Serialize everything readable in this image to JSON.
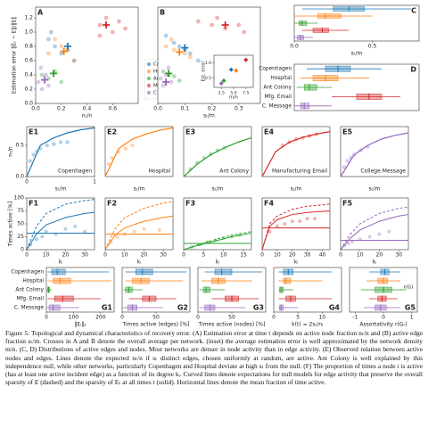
{
  "chart_data": [
    {
      "type": "scatter",
      "label": "A",
      "ylabel": "Estimation error ‖Êₜ − E‖/‖E‖",
      "xlabel": "nₜ/n",
      "xlim": [
        0,
        0.8
      ],
      "ylim": [
        0,
        1.35
      ],
      "xticks": [
        {
          "value": 0,
          "label": "0.0"
        },
        0.2,
        0.4,
        0.6
      ],
      "yticks": [
        {
          "value": 0,
          "label": "0.0"
        },
        0.2,
        0.4,
        0.6,
        0.8,
        {
          "value": 1,
          "label": "1.0"
        },
        1.2
      ],
      "legend": true,
      "series": [
        {
          "name": "Copenhagen",
          "color": "#1f77b4",
          "x": [
            0.1,
            0.15,
            0.2,
            0.25,
            0.3,
            0.12
          ],
          "y": [
            0.9,
            0.8,
            0.7,
            0.75,
            0.6,
            1.0
          ],
          "mean_x": 0.25,
          "mean_y": 0.8
        },
        {
          "name": "Hospital",
          "color": "#ff7f0e",
          "x": [
            0.1,
            0.2,
            0.3,
            0.25,
            0.15
          ],
          "y": [
            0.7,
            0.8,
            0.6,
            0.75,
            0.9
          ],
          "mean_x": 0.22,
          "mean_y": 0.73
        },
        {
          "name": "Ant Colony",
          "color": "#2ca02c",
          "x": [
            0.05,
            0.1,
            0.15,
            0.2
          ],
          "y": [
            0.4,
            0.35,
            0.45,
            0.3
          ],
          "mean_x": 0.14,
          "mean_y": 0.42
        },
        {
          "name": "Mfg. Email",
          "color": "#d62728",
          "x": [
            0.5,
            0.55,
            0.6,
            0.65,
            0.5,
            0.7
          ],
          "y": [
            1.1,
            1.2,
            1.0,
            1.15,
            0.95,
            1.05
          ],
          "mean_x": 0.55,
          "mean_y": 1.1
        },
        {
          "name": "C. Message",
          "color": "#9467bd",
          "x": [
            0.02,
            0.05,
            0.08,
            0.1,
            0.04
          ],
          "y": [
            0.3,
            0.2,
            0.4,
            0.25,
            0.5
          ],
          "mean_x": 0.07,
          "mean_y": 0.33
        }
      ]
    },
    {
      "type": "scatter",
      "label": "B",
      "xlabel": "sₜ/m",
      "xlim": [
        0,
        0.38
      ],
      "ylim": [
        0,
        1.35
      ],
      "xticks": [
        {
          "value": 0,
          "label": "0.0"
        },
        0.1,
        0.2,
        0.3
      ],
      "series": [
        {
          "color": "#1f77b4",
          "x": [
            0.03,
            0.06,
            0.1,
            0.12,
            0.15,
            0.08
          ],
          "y": [
            0.95,
            0.85,
            0.75,
            0.7,
            0.6,
            0.8
          ],
          "mean_x": 0.1,
          "mean_y": 0.78
        },
        {
          "color": "#ff7f0e",
          "x": [
            0.03,
            0.06,
            0.1,
            0.12,
            0.05
          ],
          "y": [
            0.8,
            0.75,
            0.7,
            0.65,
            0.9
          ],
          "mean_x": 0.08,
          "mean_y": 0.72
        },
        {
          "color": "#2ca02c",
          "x": [
            0.02,
            0.04,
            0.06,
            0.08
          ],
          "y": [
            0.45,
            0.4,
            0.38,
            0.32
          ],
          "mean_x": 0.04,
          "mean_y": 0.42
        },
        {
          "color": "#d62728",
          "x": [
            0.15,
            0.2,
            0.25,
            0.3,
            0.32,
            0.22
          ],
          "y": [
            1.15,
            1.1,
            1.05,
            1.1,
            1.0,
            1.2
          ],
          "mean_x": 0.25,
          "mean_y": 1.1
        },
        {
          "color": "#9467bd",
          "x": [
            0.01,
            0.02,
            0.03,
            0.05,
            0.04
          ],
          "y": [
            0.35,
            0.25,
            0.4,
            0.3,
            0.5
          ],
          "mean_x": 0.03,
          "mean_y": 0.3
        }
      ]
    },
    {
      "type": "inset",
      "ylabel": "Est. error",
      "xlabel": "m/n",
      "xlim": [
        1,
        9
      ],
      "ylim": [
        0.2,
        1.25
      ],
      "xticks": [
        2.5,
        {
          "value": 5,
          "label": "5.0"
        },
        7.5
      ],
      "yticks": [
        0.5,
        {
          "value": 1,
          "label": "1.0"
        }
      ],
      "x": [
        4.5,
        5.5,
        3.0,
        7.5,
        2.5
      ],
      "y": [
        0.78,
        0.75,
        0.42,
        1.1,
        0.33
      ],
      "colors": [
        "#1f77b4",
        "#ff7f0e",
        "#2ca02c",
        "#d62728",
        "#9467bd"
      ]
    },
    {
      "type": "box",
      "label": "C",
      "xlabel": "sₜ/m",
      "xlim": [
        0,
        0.8
      ],
      "xticks": [
        {
          "value": 0,
          "label": "0.0"
        },
        0.5
      ],
      "colors": [
        "#1f77b4",
        "#ff7f0e",
        "#2ca02c",
        "#d62728",
        "#9467bd"
      ],
      "values": [
        [
          0.05,
          0.25,
          0.35,
          0.45,
          0.75
        ],
        [
          0.0,
          0.15,
          0.2,
          0.3,
          0.5
        ],
        [
          0.0,
          0.03,
          0.05,
          0.08,
          0.15
        ],
        [
          0.05,
          0.12,
          0.18,
          0.22,
          0.35
        ],
        [
          0.0,
          0.02,
          0.04,
          0.06,
          0.12
        ]
      ]
    },
    {
      "type": "box",
      "label": "D",
      "xlim": [
        0,
        1
      ],
      "categories": [
        "Copenhagen",
        "Hospital",
        "Ant Colony",
        "Mfg. Email",
        "C. Message"
      ],
      "colors": [
        "#1f77b4",
        "#ff7f0e",
        "#2ca02c",
        "#d62728",
        "#9467bd"
      ],
      "values": [
        [
          0.1,
          0.25,
          0.35,
          0.45,
          0.7
        ],
        [
          0.05,
          0.15,
          0.25,
          0.35,
          0.6
        ],
        [
          0.02,
          0.08,
          0.12,
          0.18,
          0.3
        ],
        [
          0.3,
          0.5,
          0.6,
          0.7,
          0.85
        ],
        [
          0.0,
          0.05,
          0.08,
          0.12,
          0.3
        ]
      ]
    },
    {
      "type": "fit",
      "label": "E1",
      "title": "Copenhagen",
      "color": "#1f77b4",
      "ylabel": "nₜ/n",
      "xlabel": "sₜ/m",
      "xlim": [
        0,
        1
      ],
      "ylim": [
        0,
        0.8
      ],
      "xticks": [
        0,
        1
      ],
      "yticks": [
        {
          "value": 0,
          "label": "0.0"
        },
        0.5
      ],
      "x": [
        0.05,
        0.1,
        0.15,
        0.2,
        0.3,
        0.4,
        0.5,
        0.6
      ],
      "y": [
        0.25,
        0.35,
        0.4,
        0.45,
        0.5,
        0.52,
        0.55,
        0.55
      ],
      "curve_x": [
        0,
        0.2,
        0.4,
        0.6,
        0.8,
        1.0
      ],
      "curve_y": [
        0,
        0.5,
        0.62,
        0.7,
        0.75,
        0.78
      ]
    },
    {
      "type": "fit",
      "label": "E2",
      "title": "Hospital",
      "color": "#ff7f0e",
      "xlabel": "sₜ/m",
      "xlim": [
        0,
        1
      ],
      "ylim": [
        0,
        0.8
      ],
      "x": [
        0.05,
        0.1,
        0.2,
        0.3,
        0.4
      ],
      "y": [
        0.2,
        0.3,
        0.4,
        0.45,
        0.5
      ],
      "curve_x": [
        0,
        0.2,
        0.4,
        0.6,
        0.8,
        1.0
      ],
      "curve_y": [
        0,
        0.45,
        0.6,
        0.68,
        0.74,
        0.78
      ]
    },
    {
      "type": "fit",
      "label": "E3",
      "title": "Ant Colony",
      "color": "#2ca02c",
      "xlabel": "sₜ/m",
      "xlim": [
        0,
        1
      ],
      "ylim": [
        0,
        0.8
      ],
      "x": [
        0.1,
        0.2,
        0.3,
        0.4,
        0.5,
        0.6
      ],
      "y": [
        0.12,
        0.22,
        0.3,
        0.36,
        0.42,
        0.46
      ],
      "curve_x": [
        0,
        0.2,
        0.4,
        0.6,
        0.8,
        1.0
      ],
      "curve_y": [
        0,
        0.2,
        0.35,
        0.46,
        0.55,
        0.62
      ]
    },
    {
      "type": "fit",
      "label": "E4",
      "title": "Manufacturing Email",
      "color": "#d62728",
      "xlabel": "sₜ/m",
      "xlim": [
        0,
        1
      ],
      "ylim": [
        0,
        0.8
      ],
      "x": [
        0.3,
        0.4,
        0.5,
        0.6,
        0.7,
        0.8
      ],
      "y": [
        0.5,
        0.55,
        0.6,
        0.62,
        0.65,
        0.68
      ],
      "curve_x": [
        0,
        0.2,
        0.4,
        0.6,
        0.8,
        1.0
      ],
      "curve_y": [
        0,
        0.4,
        0.55,
        0.63,
        0.68,
        0.72
      ]
    },
    {
      "type": "fit",
      "label": "E5",
      "title": "College Message",
      "color": "#9467bd",
      "xlabel": "sₜ/m",
      "xlim": [
        0,
        1
      ],
      "ylim": [
        0,
        0.8
      ],
      "x": [
        0.05,
        0.1,
        0.15,
        0.2,
        0.3,
        0.4
      ],
      "y": [
        0.15,
        0.25,
        0.3,
        0.35,
        0.42,
        0.48
      ],
      "curve_x": [
        0,
        0.2,
        0.4,
        0.6,
        0.8,
        1.0
      ],
      "curve_y": [
        0,
        0.35,
        0.5,
        0.6,
        0.66,
        0.7
      ]
    },
    {
      "type": "activity",
      "label": "F1",
      "color": "#1f77b4",
      "ylabel": "Times active [%]",
      "xlabel": "kᵢ",
      "xlim": [
        0,
        35
      ],
      "ylim": [
        0,
        100
      ],
      "xticks": [
        0,
        10,
        20,
        30
      ],
      "yticks": [
        0,
        25,
        50,
        75,
        100
      ],
      "x": [
        2,
        5,
        8,
        10,
        15,
        20,
        25,
        30
      ],
      "y": [
        10,
        20,
        25,
        35,
        30,
        40,
        45,
        35
      ],
      "curve_x": [
        0,
        5,
        10,
        20,
        30,
        35
      ],
      "dashed_y": [
        0,
        45,
        70,
        88,
        95,
        97
      ],
      "solid_y": [
        0,
        30,
        48,
        62,
        70,
        72
      ],
      "mean": 32
    },
    {
      "type": "activity",
      "label": "F2",
      "color": "#ff7f0e",
      "xlabel": "kᵢ",
      "xlim": [
        0,
        35
      ],
      "ylim": [
        0,
        100
      ],
      "xticks": [
        0,
        10,
        20,
        30
      ],
      "x": [
        3,
        6,
        10,
        15,
        20,
        28
      ],
      "y": [
        15,
        25,
        30,
        35,
        40,
        38
      ],
      "curve_x": [
        0,
        5,
        10,
        20,
        30,
        35
      ],
      "dashed_y": [
        0,
        40,
        62,
        80,
        90,
        93
      ],
      "solid_y": [
        0,
        28,
        42,
        55,
        62,
        65
      ],
      "mean": 30
    },
    {
      "type": "activity",
      "label": "F3",
      "color": "#2ca02c",
      "xlabel": "kᵢ",
      "xlim": [
        0,
        17
      ],
      "ylim": [
        0,
        100
      ],
      "xticks": [
        0,
        5,
        10,
        15
      ],
      "x": [
        2,
        4,
        6,
        8,
        10,
        12,
        14
      ],
      "y": [
        5,
        10,
        15,
        18,
        22,
        25,
        28
      ],
      "curve_x": [
        0,
        3,
        6,
        9,
        12,
        17
      ],
      "dashed_y": [
        0,
        8,
        15,
        22,
        28,
        35
      ],
      "solid_y": [
        0,
        7,
        13,
        19,
        25,
        32
      ],
      "mean": 12
    },
    {
      "type": "activity",
      "label": "F4",
      "color": "#d62728",
      "xlabel": "kᵢ",
      "xlim": [
        0,
        45
      ],
      "ylim": [
        0,
        100
      ],
      "xticks": [
        0,
        10,
        20,
        30,
        40
      ],
      "x": [
        5,
        10,
        15,
        20,
        25,
        30,
        35
      ],
      "y": [
        35,
        45,
        50,
        55,
        55,
        60,
        60
      ],
      "curve_x": [
        0,
        5,
        10,
        20,
        30,
        45
      ],
      "dashed_y": [
        0,
        50,
        65,
        78,
        84,
        88
      ],
      "solid_y": [
        0,
        45,
        58,
        68,
        72,
        75
      ],
      "mean": 42
    },
    {
      "type": "activity",
      "label": "F5",
      "color": "#9467bd",
      "xlabel": "kᵢ",
      "xlim": [
        0,
        35
      ],
      "ylim": [
        0,
        100
      ],
      "xticks": [
        0,
        10,
        20,
        30
      ],
      "x": [
        2,
        4,
        6,
        10,
        15,
        20,
        25
      ],
      "y": [
        8,
        12,
        15,
        20,
        25,
        30,
        35
      ],
      "curve_x": [
        0,
        5,
        10,
        20,
        30,
        35
      ],
      "dashed_y": [
        0,
        30,
        50,
        70,
        80,
        82
      ],
      "solid_y": [
        0,
        22,
        38,
        55,
        65,
        68
      ],
      "mean": 18
    },
    {
      "type": "box",
      "label": "G1",
      "xlabel": "‖Eᵢ‖₁",
      "xlim": [
        0,
        250
      ],
      "xticks": [
        0,
        100,
        200
      ],
      "categories": [
        "Copenhagen",
        "Hospital",
        "Ant Colony",
        "Mfg. Email",
        "C. Message"
      ],
      "colors": [
        "#1f77b4",
        "#ff7f0e",
        "#2ca02c",
        "#d62728",
        "#9467bd"
      ],
      "values": [
        [
          5,
          20,
          40,
          70,
          230
        ],
        [
          5,
          25,
          50,
          90,
          240
        ],
        [
          2,
          5,
          8,
          12,
          20
        ],
        [
          5,
          30,
          60,
          100,
          200
        ],
        [
          2,
          10,
          25,
          50,
          120
        ]
      ]
    },
    {
      "type": "box",
      "label": "G2",
      "xlabel": "Times active (edges) [%]",
      "xlim": [
        0,
        100
      ],
      "xticks": [
        0,
        50
      ],
      "colors": [
        "#1f77b4",
        "#ff7f0e",
        "#2ca02c",
        "#d62728",
        "#9467bd"
      ],
      "values": [
        [
          5,
          20,
          30,
          45,
          95
        ],
        [
          5,
          15,
          28,
          40,
          90
        ],
        [
          2,
          5,
          10,
          15,
          30
        ],
        [
          10,
          30,
          40,
          50,
          80
        ],
        [
          1,
          8,
          15,
          22,
          60
        ]
      ]
    },
    {
      "type": "box",
      "label": "G3",
      "xlabel": "Times active (nodes) [%]",
      "xlim": [
        0,
        100
      ],
      "xticks": [
        0,
        50
      ],
      "colors": [
        "#1f77b4",
        "#ff7f0e",
        "#2ca02c",
        "#d62728",
        "#9467bd"
      ],
      "values": [
        [
          10,
          25,
          35,
          50,
          95
        ],
        [
          5,
          20,
          30,
          40,
          80
        ],
        [
          2,
          8,
          12,
          18,
          40
        ],
        [
          20,
          40,
          50,
          60,
          90
        ],
        [
          2,
          10,
          18,
          25,
          70
        ]
      ]
    },
    {
      "type": "box",
      "label": "G4",
      "xlabel": "k(t) = 2sₜ/nₜ",
      "xlim": [
        0,
        14
      ],
      "xticks": [
        0,
        5,
        10
      ],
      "colors": [
        "#1f77b4",
        "#ff7f0e",
        "#2ca02c",
        "#d62728",
        "#9467bd"
      ],
      "values": [
        [
          1,
          2,
          3,
          4,
          12
        ],
        [
          1,
          2,
          2.5,
          3.5,
          10
        ],
        [
          1,
          1.2,
          1.5,
          2,
          4
        ],
        [
          1,
          2.5,
          3.5,
          4.5,
          12
        ],
        [
          1,
          1.2,
          1.5,
          2,
          5
        ]
      ]
    },
    {
      "type": "box",
      "label": "G5",
      "xlabel": "Assortativity r(Gₜ)",
      "xlim": [
        -1.2,
        1.2
      ],
      "xticks": [
        -1,
        0,
        1
      ],
      "annotation": "r(G)",
      "colors": [
        "#1f77b4",
        "#ff7f0e",
        "#2ca02c",
        "#d62728",
        "#9467bd"
      ],
      "values": [
        [
          -0.5,
          -0.1,
          0.05,
          0.2,
          0.6
        ],
        [
          -0.6,
          -0.2,
          0,
          0.15,
          0.6
        ],
        [
          -0.8,
          -0.3,
          0,
          0.3,
          0.8
        ],
        [
          -0.5,
          -0.2,
          -0.05,
          0.1,
          0.5
        ],
        [
          -0.7,
          -0.3,
          -0.1,
          0.1,
          0.6
        ]
      ]
    }
  ],
  "caption": "Figure 5: Topological and dynamical characteristics of recovery error. (A) Estimation error at time t depends on active node fraction nₜ/n and (B) active edge fraction sₜ/m. Crosses in A and B denote the overall average per network. (inset) the average estimation error is well approximated by the network density m/n. (C, D) Distributions of active edges and nodes. Most networks are denser in node activity than in edge activity. (E) Observed relation between active nodes and edges. Lines denote the expected nₜ/n if sₜ distinct edges, chosen uniformly at random, are active. Ant Colony is well explained by this independence null, while other networks, particularly Copenhagen and Hospital deviate at high sₜ from the null. (F) The proportion of times a node i is active (has at least one active incident edge) as a function of its degree kᵢ. Curved lines denote expectations for null models for edge activity that preserve the overall sparsity of E (dashed) and the sparsity of Eₜ at all times t (solid). Horizontal lines denote the mean fraction of time active."
}
